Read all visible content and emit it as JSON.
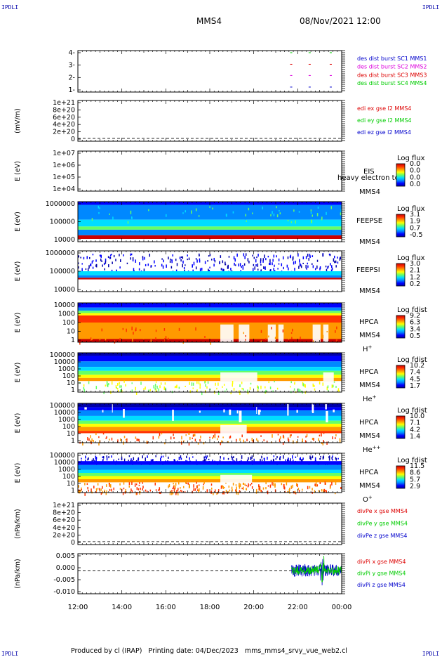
{
  "corners": {
    "tl": "IPDLI",
    "tr": "IPDLI",
    "bl": "IPDLI",
    "br": "IPDLI"
  },
  "header": {
    "spacecraft": "MMS4",
    "datetime": "08/Nov/2021 12:00"
  },
  "footer": {
    "text": "Produced by cl (IRAP)   Printing date: 04/Dec/2023   mms_mms4_srvy_vue_web2.cl"
  },
  "colors": {
    "red": "#dd0000",
    "magenta": "#dd00dd",
    "green": "#00cc00",
    "blue": "#0000cc",
    "spectrogram": [
      "#0000aa",
      "#0000ff",
      "#0088ff",
      "#00ddff",
      "#66ff66",
      "#ffff00",
      "#ff9900",
      "#ff3300",
      "#cc0000"
    ]
  },
  "chart_data": [
    {
      "type": "line",
      "id": "availability",
      "ylabels": [
        "4-",
        "3-",
        "2-",
        "1-"
      ],
      "legend": [
        {
          "name": "des dist burst SC1 MMS1",
          "color": "blue"
        },
        {
          "name": "des dist burst SC2 MMS2",
          "color": "magenta"
        },
        {
          "name": "des dist burst SC3 MMS3",
          "color": "red"
        },
        {
          "name": "des dist burst SC4 MMS4",
          "color": "green"
        }
      ]
    },
    {
      "type": "line",
      "id": "edi",
      "ylabel": "(mV/m)",
      "ylabels": [
        "1e+21",
        "8e+20",
        "6e+20",
        "4e+20",
        "2e+20",
        "0"
      ],
      "legend": [
        {
          "name": "edi ex gse l2 MMS4",
          "color": "red"
        },
        {
          "name": "edi ey gse l2 MMS4",
          "color": "green"
        },
        {
          "name": "edi ez gse l2 MMS4",
          "color": "blue"
        }
      ]
    },
    {
      "type": "heatmap",
      "id": "eis",
      "ylabel": "E (eV)",
      "ylabels": [
        "1e+07",
        "1e+06",
        "1e+05",
        "1e+04"
      ],
      "inst": [
        "EIS",
        "MMS4"
      ],
      "overlay": "heavy electron to",
      "cb_title": "Log flux",
      "cb_ticks": [
        "0.0",
        "0.0",
        "0.0",
        "0.0"
      ],
      "fill": "empty"
    },
    {
      "type": "heatmap",
      "id": "feepse",
      "ylabel": "E (eV)",
      "ylabels": [
        "1000000",
        "100000",
        "10000"
      ],
      "inst": [
        "FEEPSE",
        "MMS4"
      ],
      "cb_title": "Log flux",
      "cb_ticks": [
        "3.1",
        "1.9",
        "0.7",
        "-0.5"
      ],
      "fill": "feeps_e"
    },
    {
      "type": "heatmap",
      "id": "feepsi",
      "ylabel": "E (eV)",
      "ylabels": [
        "1000000",
        "100000",
        "10000"
      ],
      "inst": [
        "FEEPSI",
        "MMS4"
      ],
      "cb_title": "Log flux",
      "cb_ticks": [
        "3.0",
        "2.1",
        "1.2",
        "0.2"
      ],
      "fill": "feeps_i"
    },
    {
      "type": "heatmap",
      "id": "hpca_h",
      "ylabel": "E (eV)",
      "ylabels": [
        "10000",
        "1000",
        "100",
        "10",
        "1"
      ],
      "inst": [
        "HPCA",
        "MMS4"
      ],
      "species": "H",
      "sup": "+",
      "cb_title": "Log fdist",
      "cb_ticks": [
        "9.2",
        "6.3",
        "3.4",
        "0.5"
      ],
      "fill": "hpca_h"
    },
    {
      "type": "heatmap",
      "id": "hpca_he",
      "ylabel": "E (eV)",
      "ylabels": [
        "100000",
        "10000",
        "1000",
        "100",
        "10",
        "1"
      ],
      "inst": [
        "HPCA",
        "MMS4"
      ],
      "species": "He",
      "sup": "+",
      "cb_title": "Log fdist",
      "cb_ticks": [
        "10.2",
        "7.4",
        "4.5",
        "1.7"
      ],
      "fill": "hpca_he"
    },
    {
      "type": "heatmap",
      "id": "hpca_hepp",
      "ylabel": "E (eV)",
      "ylabels": [
        "100000",
        "10000",
        "1000",
        "100",
        "10",
        "1"
      ],
      "inst": [
        "HPCA",
        "MMS4"
      ],
      "species": "He",
      "sup": "++",
      "cb_title": "Log fdist",
      "cb_ticks": [
        "10.0",
        "7.1",
        "4.2",
        "1.4"
      ],
      "fill": "hpca_hepp"
    },
    {
      "type": "heatmap",
      "id": "hpca_o",
      "ylabel": "E (eV)",
      "ylabels": [
        "100000",
        "10000",
        "1000",
        "100",
        "10",
        "1"
      ],
      "inst": [
        "HPCA",
        "MMS4"
      ],
      "species": "O",
      "sup": "+",
      "cb_title": "Log fdist",
      "cb_ticks": [
        "11.5",
        "8.6",
        "5.7",
        "2.9"
      ],
      "fill": "hpca_o"
    },
    {
      "type": "line",
      "id": "divpe",
      "ylabel": "(nPa/km)",
      "ylabels": [
        "1e+21",
        "8e+20",
        "6e+20",
        "4e+20",
        "2e+20",
        "0"
      ],
      "legend": [
        {
          "name": "divPe x gse MMS4",
          "color": "red"
        },
        {
          "name": "divPe y gse MMS4",
          "color": "green"
        },
        {
          "name": "divPe z gse MMS4",
          "color": "blue"
        }
      ]
    },
    {
      "type": "line",
      "id": "divpi",
      "ylabel": "(nPa/km)",
      "ylabels": [
        "0.005",
        "0.000",
        "-0.005",
        "-0.010"
      ],
      "legend": [
        {
          "name": "divPi x gse MMS4",
          "color": "red"
        },
        {
          "name": "divPi y gse MMS4",
          "color": "green"
        },
        {
          "name": "divPi z gse MMS4",
          "color": "blue"
        }
      ]
    }
  ],
  "xaxis": {
    "ticks": [
      "12:00",
      "14:00",
      "16:00",
      "18:00",
      "20:00",
      "22:00",
      "00:00"
    ]
  }
}
